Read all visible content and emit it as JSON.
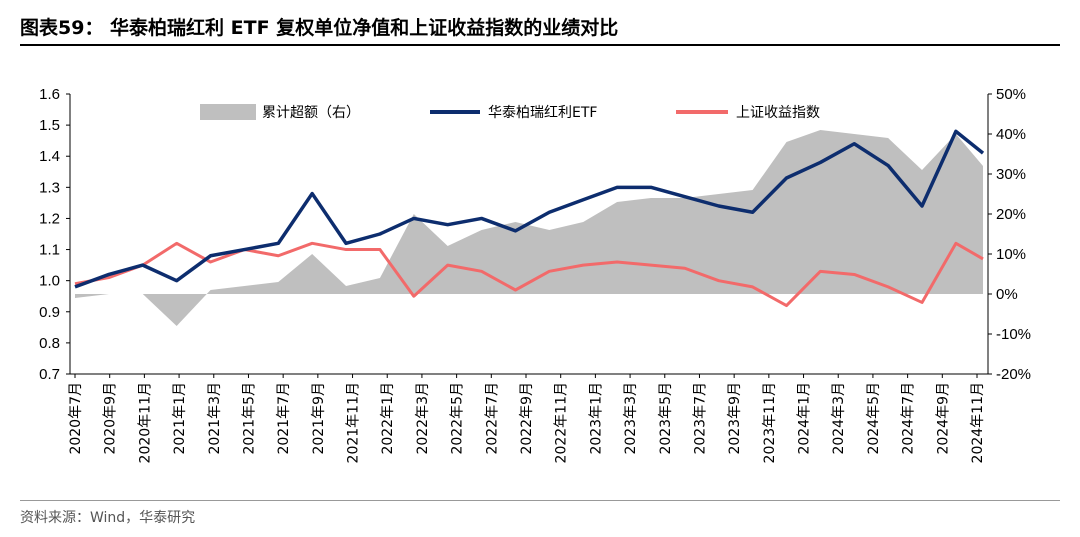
{
  "header": {
    "title": "图表59： 华泰柏瑞红利 ETF 复权单位净值和上证收益指数的业绩对比"
  },
  "footer": {
    "source": "资料来源：Wind，华泰研究"
  },
  "chart_data": {
    "type": "line",
    "left_axis": {
      "ticks": [
        "1.6",
        "1.5",
        "1.4",
        "1.3",
        "1.2",
        "1.1",
        "1.0",
        "0.9",
        "0.8",
        "0.7"
      ],
      "ylim": [
        0.7,
        1.6
      ]
    },
    "right_axis": {
      "ticks": [
        "50%",
        "40%",
        "30%",
        "20%",
        "10%",
        "0%",
        "-10%",
        "-20%"
      ],
      "ylim": [
        -20,
        50
      ]
    },
    "x_tick_labels": [
      "2020年7月",
      "2020年9月",
      "2020年11月",
      "2021年1月",
      "2021年3月",
      "2021年5月",
      "2021年7月",
      "2021年9月",
      "2021年11月",
      "2022年1月",
      "2022年3月",
      "2022年5月",
      "2022年7月",
      "2022年9月",
      "2022年11月",
      "2023年1月",
      "2023年3月",
      "2023年5月",
      "2023年7月",
      "2023年9月",
      "2023年11月",
      "2024年1月",
      "2024年3月",
      "2024年5月",
      "2024年7月",
      "2024年9月",
      "2024年11月"
    ],
    "legend": [
      "累计超额（右）",
      "华泰柏瑞红利ETF",
      "上证收益指数"
    ],
    "colors": {
      "excess": "#BFBFBF",
      "etf": "#0D2D6E",
      "index": "#F26A6A"
    },
    "x_index": [
      0,
      1,
      2,
      3,
      4,
      5,
      6,
      7,
      8,
      9,
      10,
      11,
      12,
      13,
      14,
      15,
      16,
      17,
      18,
      19,
      20,
      21,
      22,
      23,
      24,
      25,
      26,
      26.8
    ],
    "series": [
      {
        "name": "华泰柏瑞红利ETF",
        "axis": "left",
        "values": [
          0.98,
          1.02,
          1.05,
          1.0,
          1.08,
          1.1,
          1.12,
          1.28,
          1.12,
          1.15,
          1.2,
          1.18,
          1.2,
          1.16,
          1.22,
          1.26,
          1.3,
          1.3,
          1.27,
          1.24,
          1.22,
          1.33,
          1.38,
          1.44,
          1.37,
          1.24,
          1.48,
          1.41
        ]
      },
      {
        "name": "上证收益指数",
        "axis": "left",
        "values": [
          0.99,
          1.01,
          1.05,
          1.12,
          1.06,
          1.1,
          1.08,
          1.12,
          1.1,
          1.1,
          0.95,
          1.05,
          1.03,
          0.97,
          1.03,
          1.05,
          1.06,
          1.05,
          1.04,
          1.0,
          0.98,
          0.92,
          1.03,
          1.02,
          0.98,
          0.93,
          1.12,
          1.07
        ]
      },
      {
        "name": "累计超额（右）",
        "axis": "right",
        "values": [
          -1,
          0,
          0,
          -8,
          1,
          2,
          3,
          10,
          2,
          4,
          20,
          12,
          16,
          18,
          16,
          18,
          23,
          24,
          24,
          25,
          26,
          38,
          41,
          40,
          39,
          31,
          40,
          32
        ]
      }
    ]
  }
}
